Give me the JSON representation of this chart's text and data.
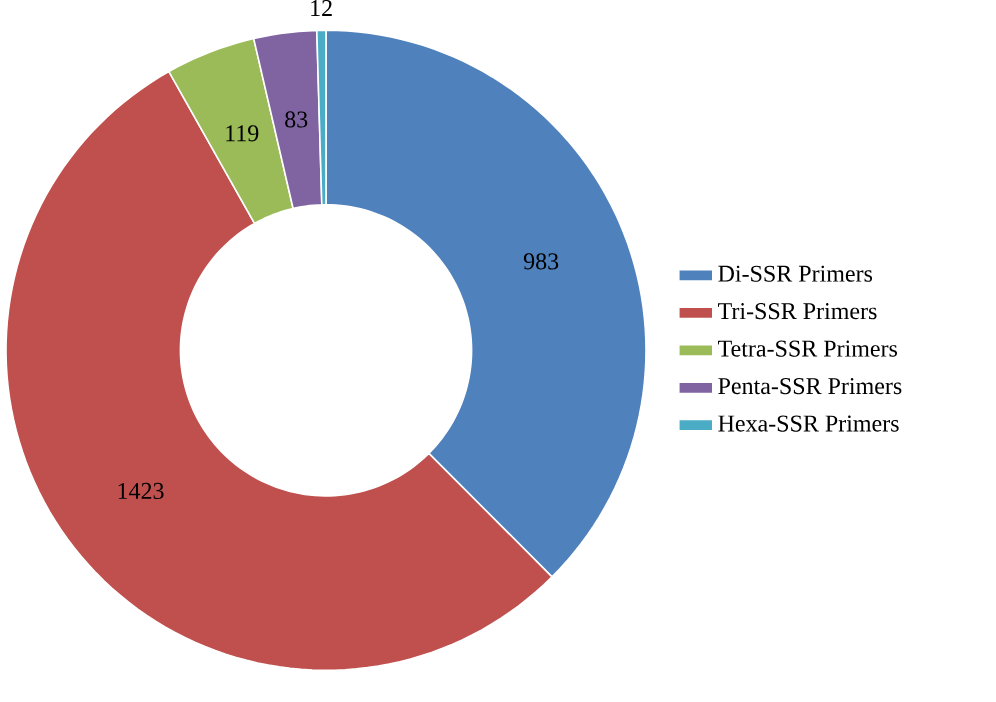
{
  "chart_data": {
    "type": "donut",
    "categories": [
      "Di-SSR Primers",
      "Tri-SSR Primers",
      "Tetra-SSR Primers",
      "Penta-SSR Primers",
      "Hexa-SSR Primers"
    ],
    "values": [
      983,
      1423,
      119,
      83,
      12
    ],
    "colors": [
      "#4f81bd",
      "#c0504d",
      "#9bbb59",
      "#8064a2",
      "#4bacc6"
    ],
    "data_labels": true,
    "legend": "right"
  }
}
